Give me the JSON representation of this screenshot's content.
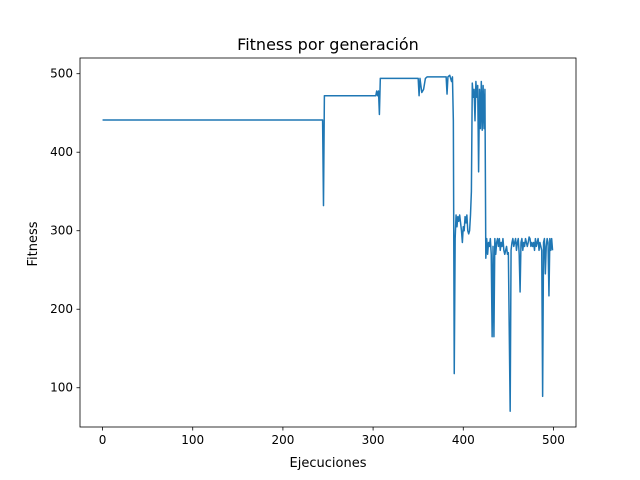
{
  "chart_data": {
    "type": "line",
    "title": "Fitness por generación",
    "xlabel": "Ejecuciones",
    "ylabel": "Fitness",
    "xlim": [
      -25,
      525
    ],
    "ylim": [
      50,
      520
    ],
    "xticks": [
      0,
      100,
      200,
      300,
      400,
      500
    ],
    "yticks": [
      100,
      200,
      300,
      400,
      500
    ],
    "grid": false,
    "series": [
      {
        "color": "#1f77b4",
        "points": [
          [
            0,
            441
          ],
          [
            244,
            441
          ],
          [
            245,
            332
          ],
          [
            246,
            472
          ],
          [
            303,
            472
          ],
          [
            304,
            478
          ],
          [
            305,
            472
          ],
          [
            306,
            478
          ],
          [
            307,
            448
          ],
          [
            308,
            494
          ],
          [
            350,
            494
          ],
          [
            351,
            472
          ],
          [
            352,
            494
          ],
          [
            354,
            476
          ],
          [
            356,
            480
          ],
          [
            358,
            494
          ],
          [
            360,
            496
          ],
          [
            370,
            496
          ],
          [
            381,
            496
          ],
          [
            382,
            474
          ],
          [
            383,
            496
          ],
          [
            385,
            498
          ],
          [
            387,
            490
          ],
          [
            388,
            496
          ],
          [
            389,
            440
          ],
          [
            390,
            118
          ],
          [
            391,
            290
          ],
          [
            392,
            320
          ],
          [
            393,
            305
          ],
          [
            394,
            318
          ],
          [
            395,
            312
          ],
          [
            396,
            320
          ],
          [
            397,
            310
          ],
          [
            398,
            300
          ],
          [
            399,
            285
          ],
          [
            400,
            305
          ],
          [
            401,
            300
          ],
          [
            402,
            318
          ],
          [
            403,
            310
          ],
          [
            404,
            320
          ],
          [
            405,
            300
          ],
          [
            406,
            296
          ],
          [
            407,
            300
          ],
          [
            408,
            320
          ],
          [
            409,
            350
          ],
          [
            410,
            488
          ],
          [
            411,
            470
          ],
          [
            412,
            480
          ],
          [
            413,
            440
          ],
          [
            414,
            490
          ],
          [
            415,
            470
          ],
          [
            416,
            485
          ],
          [
            417,
            375
          ],
          [
            418,
            480
          ],
          [
            419,
            430
          ],
          [
            420,
            490
          ],
          [
            421,
            428
          ],
          [
            422,
            485
          ],
          [
            423,
            430
          ],
          [
            424,
            480
          ],
          [
            425,
            265
          ],
          [
            426,
            290
          ],
          [
            427,
            270
          ],
          [
            428,
            285
          ],
          [
            429,
            280
          ],
          [
            430,
            290
          ],
          [
            431,
            270
          ],
          [
            432,
            165
          ],
          [
            433,
            280
          ],
          [
            434,
            165
          ],
          [
            435,
            290
          ],
          [
            436,
            270
          ],
          [
            437,
            285
          ],
          [
            438,
            290
          ],
          [
            439,
            280
          ],
          [
            440,
            290
          ],
          [
            441,
            275
          ],
          [
            442,
            285
          ],
          [
            443,
            280
          ],
          [
            444,
            290
          ],
          [
            445,
            275
          ],
          [
            446,
            270
          ],
          [
            447,
            275
          ],
          [
            448,
            280
          ],
          [
            449,
            270
          ],
          [
            450,
            272
          ],
          [
            452,
            70
          ],
          [
            453,
            275
          ],
          [
            454,
            285
          ],
          [
            455,
            290
          ],
          [
            456,
            280
          ],
          [
            457,
            285
          ],
          [
            458,
            290
          ],
          [
            459,
            275
          ],
          [
            460,
            285
          ],
          [
            461,
            290
          ],
          [
            462,
            270
          ],
          [
            463,
            222
          ],
          [
            464,
            285
          ],
          [
            465,
            290
          ],
          [
            466,
            275
          ],
          [
            467,
            285
          ],
          [
            468,
            280
          ],
          [
            469,
            290
          ],
          [
            470,
            285
          ],
          [
            471,
            280
          ],
          [
            472,
            285
          ],
          [
            473,
            292
          ],
          [
            474,
            290
          ],
          [
            475,
            280
          ],
          [
            476,
            285
          ],
          [
            477,
            280
          ],
          [
            478,
            285
          ],
          [
            479,
            275
          ],
          [
            480,
            290
          ],
          [
            481,
            280
          ],
          [
            482,
            285
          ],
          [
            483,
            290
          ],
          [
            484,
            275
          ],
          [
            485,
            285
          ],
          [
            486,
            280
          ],
          [
            487,
            275
          ],
          [
            488,
            89
          ],
          [
            489,
            285
          ],
          [
            490,
            290
          ],
          [
            491,
            245
          ],
          [
            492,
            280
          ],
          [
            493,
            290
          ],
          [
            494,
            285
          ],
          [
            495,
            217
          ],
          [
            496,
            290
          ],
          [
            497,
            275
          ],
          [
            498,
            290
          ],
          [
            499,
            275
          ]
        ]
      }
    ]
  }
}
